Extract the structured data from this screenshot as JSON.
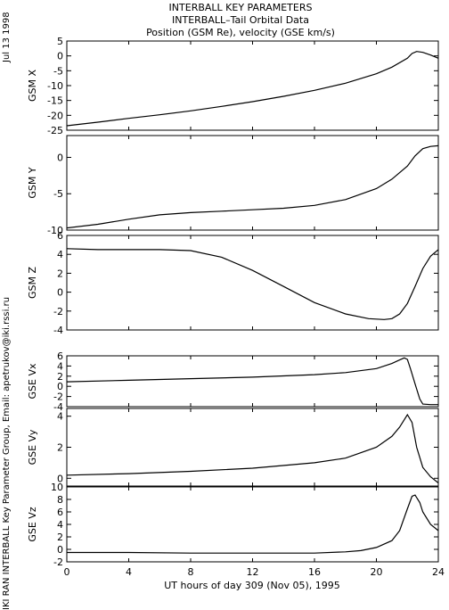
{
  "side_labels": {
    "date": "Jul 13 1998",
    "credit": "IKI RAN INTERBALL Key Parameter Group, Email: apetrukov@iki.rssi.ru"
  },
  "chart_data": {
    "type": "line",
    "title": [
      "INTERBALL KEY PARAMETERS",
      "INTERBALL–Tail Orbital Data",
      "Position (GSM Re), velocity (GSE km/s)"
    ],
    "xlabel": "UT hours of day 309 (Nov 05), 1995",
    "xlim": [
      0,
      24
    ],
    "xticks": [
      0,
      4,
      8,
      12,
      16,
      20,
      24
    ],
    "xtick_labels": [
      "0",
      "4",
      "8",
      "12",
      "16",
      "20",
      "24"
    ],
    "line_color": "#000000",
    "panels": [
      {
        "name": "GSM X",
        "ylim": [
          -25,
          5
        ],
        "yticks": [
          -25,
          -20,
          -15,
          -10,
          -5,
          0,
          5
        ],
        "x": [
          0,
          2,
          4,
          6,
          8,
          10,
          12,
          14,
          16,
          18,
          20,
          21,
          22,
          22.3,
          22.6,
          23,
          23.5,
          24
        ],
        "y": [
          -23.5,
          -22.3,
          -21,
          -19.8,
          -18.5,
          -17,
          -15.4,
          -13.6,
          -11.6,
          -9.2,
          -6,
          -3.8,
          -0.8,
          0.8,
          1.5,
          1.2,
          0.3,
          -0.8
        ]
      },
      {
        "name": "GSM Y",
        "ylim": [
          -10,
          3
        ],
        "yticks": [
          -10,
          -5,
          0
        ],
        "x": [
          0,
          2,
          4,
          6,
          8,
          10,
          12,
          14,
          16,
          18,
          20,
          21,
          22,
          22.5,
          23,
          23.5,
          24
        ],
        "y": [
          -9.7,
          -9.2,
          -8.5,
          -7.9,
          -7.6,
          -7.4,
          -7.2,
          -7,
          -6.6,
          -5.8,
          -4.3,
          -3,
          -1.2,
          0.2,
          1.2,
          1.5,
          1.6
        ]
      },
      {
        "name": "GSM Z",
        "ylim": [
          -4,
          6
        ],
        "yticks": [
          -4,
          -2,
          0,
          2,
          4,
          6
        ],
        "x": [
          0,
          2,
          4,
          6,
          8,
          10,
          12,
          14,
          16,
          18,
          19.5,
          20.5,
          21,
          21.5,
          22,
          22.5,
          23,
          23.5,
          24
        ],
        "y": [
          4.6,
          4.5,
          4.5,
          4.5,
          4.4,
          3.7,
          2.3,
          0.6,
          -1.1,
          -2.3,
          -2.8,
          -2.9,
          -2.8,
          -2.3,
          -1.2,
          0.6,
          2.5,
          3.8,
          4.5
        ]
      },
      {
        "name": "GSE Vx",
        "ylim": [
          -4,
          6
        ],
        "yticks": [
          -4,
          -2,
          0,
          2,
          4,
          6
        ],
        "x": [
          0,
          4,
          8,
          12,
          16,
          18,
          20,
          21,
          21.5,
          21.8,
          22,
          22.2,
          22.5,
          22.8,
          23,
          23.5,
          24
        ],
        "y": [
          0.9,
          1.2,
          1.5,
          1.8,
          2.3,
          2.7,
          3.5,
          4.5,
          5.2,
          5.6,
          5.3,
          3.5,
          0.5,
          -2.5,
          -3.5,
          -3.6,
          -3.6
        ]
      },
      {
        "name": "GSE Vy",
        "ylim": [
          -0.5,
          4.5
        ],
        "yticks": [
          0,
          2,
          4
        ],
        "x": [
          0,
          4,
          8,
          12,
          16,
          18,
          20,
          21,
          21.5,
          22,
          22.3,
          22.6,
          23,
          23.5,
          24
        ],
        "y": [
          0.2,
          0.3,
          0.45,
          0.65,
          1,
          1.3,
          2,
          2.7,
          3.3,
          4.1,
          3.6,
          2,
          0.7,
          0.1,
          -0.3
        ]
      },
      {
        "name": "GSE Vz",
        "ylim": [
          -2,
          10
        ],
        "yticks": [
          -2,
          0,
          2,
          4,
          6,
          8,
          10
        ],
        "x": [
          0,
          4,
          8,
          12,
          16,
          18,
          19,
          20,
          21,
          21.5,
          22,
          22.3,
          22.5,
          22.8,
          23,
          23.5,
          24
        ],
        "y": [
          -0.5,
          -0.5,
          -0.6,
          -0.6,
          -0.6,
          -0.4,
          -0.2,
          0.3,
          1.4,
          3,
          6.5,
          8.5,
          8.7,
          7.5,
          6,
          4,
          3
        ]
      }
    ]
  }
}
